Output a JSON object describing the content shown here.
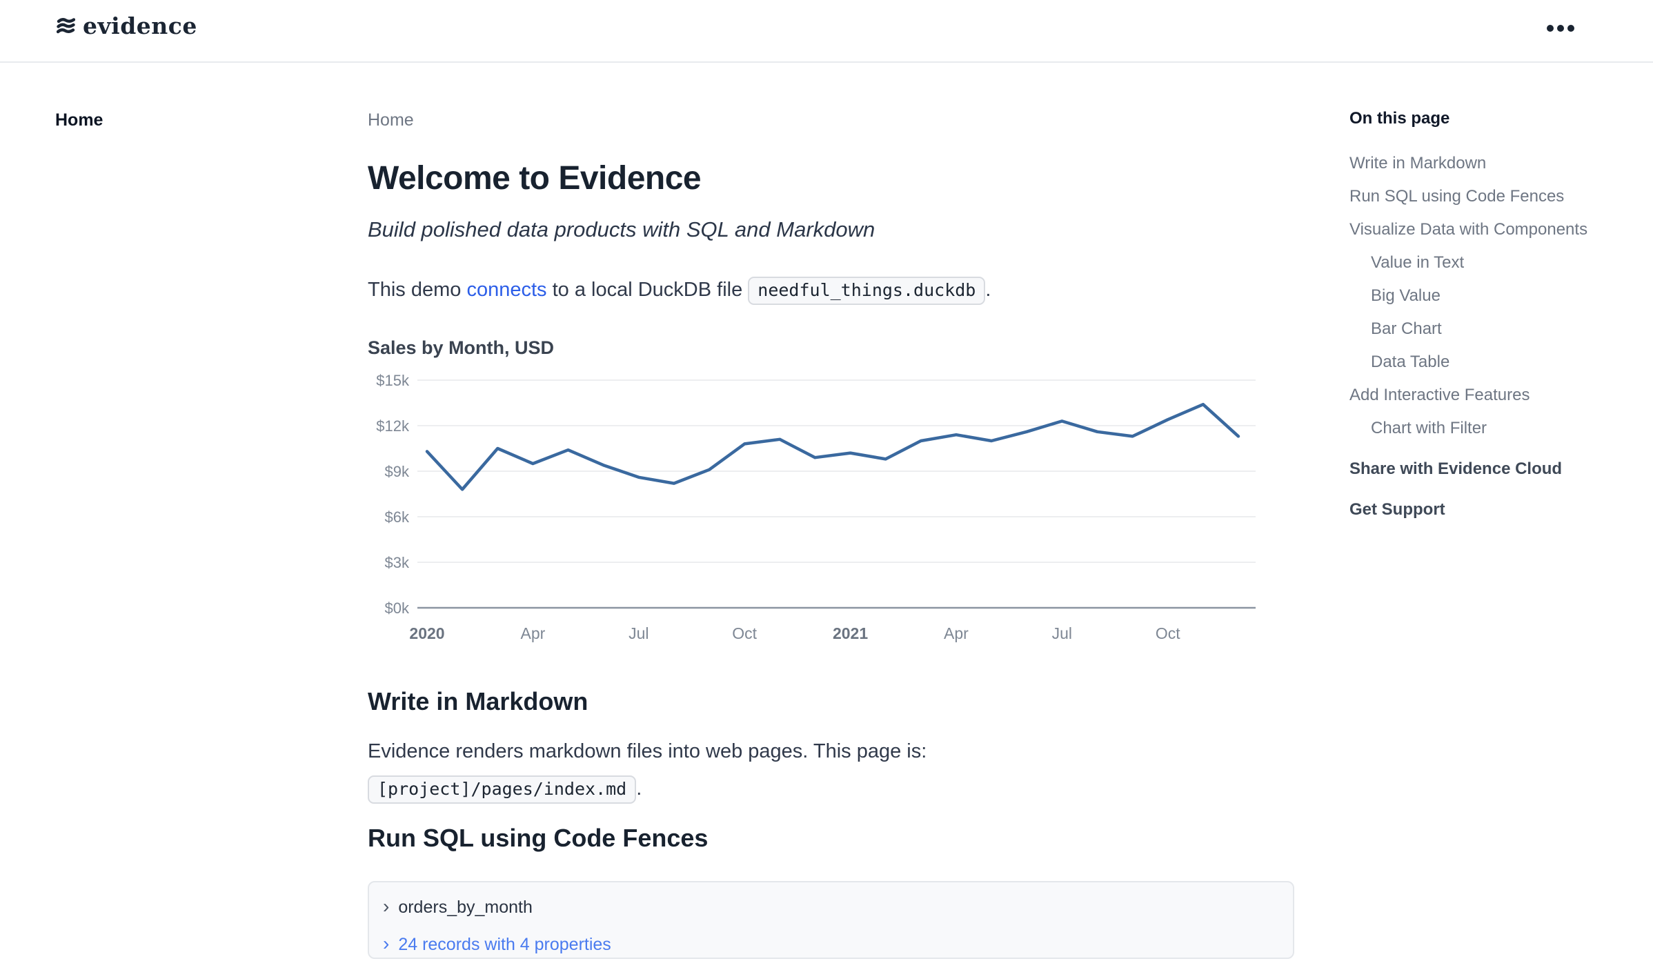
{
  "header": {
    "logo_text": "evidence"
  },
  "sidebar": {
    "home_label": "Home"
  },
  "main": {
    "breadcrumb": "Home",
    "title": "Welcome to Evidence",
    "subtitle": "Build polished data products with SQL and Markdown",
    "intro": {
      "text_before_link": "This demo ",
      "link_label": "connects",
      "text_after_link": " to a local DuckDB file ",
      "code": "needful_things.duckdb",
      "text_end": "."
    }
  },
  "chart_data": {
    "type": "line",
    "title": "Sales by Month, USD",
    "x": [
      "Jan 2020",
      "Feb 2020",
      "Mar 2020",
      "Apr 2020",
      "May 2020",
      "Jun 2020",
      "Jul 2020",
      "Aug 2020",
      "Sep 2020",
      "Oct 2020",
      "Nov 2020",
      "Dec 2020",
      "Jan 2021",
      "Feb 2021",
      "Mar 2021",
      "Apr 2021",
      "May 2021",
      "Jun 2021",
      "Jul 2021",
      "Aug 2021",
      "Sep 2021",
      "Oct 2021",
      "Nov 2021",
      "Dec 2021"
    ],
    "values_usd": [
      10300,
      7800,
      10500,
      9500,
      10400,
      9400,
      8600,
      8200,
      9100,
      10800,
      11100,
      9900,
      10200,
      9800,
      11000,
      11400,
      11000,
      11600,
      12300,
      11600,
      11300,
      12400,
      13400,
      11300
    ],
    "ylim": [
      0,
      15000
    ],
    "grid": true,
    "legend": false,
    "y_ticks": [
      {
        "label": "$15k",
        "value": 15000
      },
      {
        "label": "$12k",
        "value": 12000
      },
      {
        "label": "$9k",
        "value": 9000
      },
      {
        "label": "$6k",
        "value": 6000
      },
      {
        "label": "$3k",
        "value": 3000
      },
      {
        "label": "$0k",
        "value": 0
      }
    ],
    "x_ticks": [
      {
        "label": "2020",
        "index": 0,
        "bold": true
      },
      {
        "label": "Apr",
        "index": 3,
        "bold": false
      },
      {
        "label": "Jul",
        "index": 6,
        "bold": false
      },
      {
        "label": "Oct",
        "index": 9,
        "bold": false
      },
      {
        "label": "2021",
        "index": 12,
        "bold": true
      },
      {
        "label": "Apr",
        "index": 15,
        "bold": false
      },
      {
        "label": "Jul",
        "index": 18,
        "bold": false
      },
      {
        "label": "Oct",
        "index": 21,
        "bold": false
      }
    ]
  },
  "sections": {
    "markdown": {
      "heading": "Write in Markdown",
      "body": "Evidence renders markdown files into web pages. This page is:",
      "code": "[project]/pages/index.md",
      "text_end": "."
    },
    "sql": {
      "heading": "Run SQL using Code Fences",
      "chevron": "›",
      "query_name": "orders_by_month",
      "result_summary": "24 records with 4 properties"
    }
  },
  "toc": {
    "heading": "On this page",
    "items": [
      {
        "label": "Write in Markdown",
        "indent": false,
        "bold": false
      },
      {
        "label": "Run SQL using Code Fences",
        "indent": false,
        "bold": false
      },
      {
        "label": "Visualize Data with Components",
        "indent": false,
        "bold": false
      },
      {
        "label": "Value in Text",
        "indent": true,
        "bold": false
      },
      {
        "label": "Big Value",
        "indent": true,
        "bold": false
      },
      {
        "label": "Bar Chart",
        "indent": true,
        "bold": false
      },
      {
        "label": "Data Table",
        "indent": true,
        "bold": false
      },
      {
        "label": "Add Interactive Features",
        "indent": false,
        "bold": false
      },
      {
        "label": "Chart with Filter",
        "indent": true,
        "bold": false
      },
      {
        "label": "Share with Evidence Cloud",
        "indent": false,
        "bold": true
      },
      {
        "label": "Get Support",
        "indent": false,
        "bold": true
      }
    ]
  },
  "colors": {
    "brand_navy": "#1b2533",
    "link_blue": "#2c5ee8",
    "results_link_blue": "#4a7bef",
    "chart_line": "#3a699f",
    "grid_line": "#e7e8ec",
    "axis_line": "#8b95a1",
    "tick_label": "#7e8794",
    "year_tick_label": "#6a7380",
    "muted_text": "#6e7683"
  }
}
